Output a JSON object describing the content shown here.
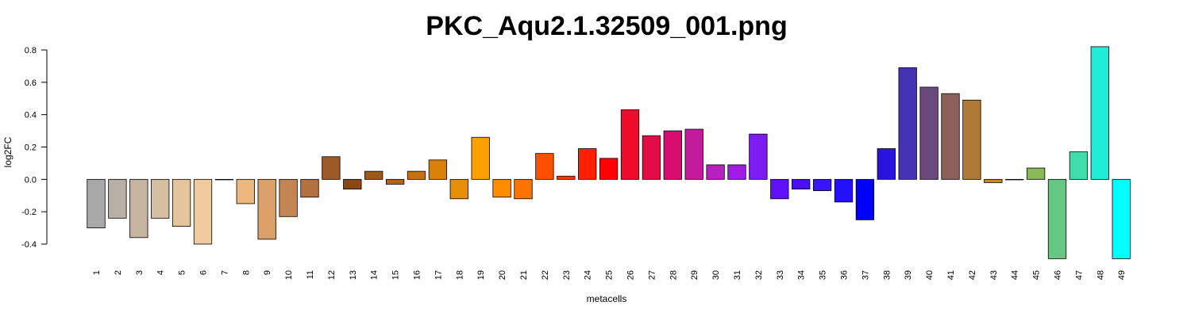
{
  "chart_data": {
    "type": "bar",
    "title": "PKC_Aqu2.1.32509_001.png",
    "xlabel": "metacells",
    "ylabel": "log2FC",
    "ylim": [
      -0.4,
      0.8
    ],
    "yticks": [
      "-0.4",
      "-0.2",
      "0.0",
      "0.2",
      "0.4",
      "0.6",
      "0.8"
    ],
    "categories": [
      "1",
      "2",
      "3",
      "4",
      "5",
      "6",
      "7",
      "8",
      "9",
      "10",
      "11",
      "12",
      "13",
      "14",
      "15",
      "16",
      "17",
      "18",
      "19",
      "20",
      "21",
      "22",
      "23",
      "24",
      "25",
      "26",
      "27",
      "28",
      "29",
      "30",
      "31",
      "32",
      "33",
      "34",
      "35",
      "36",
      "37",
      "38",
      "39",
      "40",
      "41",
      "42",
      "43",
      "44",
      "45",
      "46",
      "47",
      "48",
      "49"
    ],
    "values": [
      -0.3,
      -0.24,
      -0.36,
      -0.24,
      -0.29,
      -0.4,
      0.0,
      -0.15,
      -0.37,
      -0.23,
      -0.11,
      0.14,
      -0.06,
      0.05,
      -0.03,
      0.05,
      0.12,
      -0.12,
      0.26,
      -0.11,
      -0.12,
      0.16,
      0.02,
      0.19,
      0.13,
      0.43,
      0.27,
      0.3,
      0.31,
      0.09,
      0.09,
      0.28,
      -0.12,
      -0.06,
      -0.07,
      -0.14,
      -0.25,
      0.19,
      0.69,
      0.57,
      0.53,
      0.49,
      -0.02,
      0.0,
      0.07,
      -0.49,
      0.17,
      0.82,
      -0.49
    ],
    "colors": [
      "#a8a8a8",
      "#b8b0a4",
      "#c5b5a0",
      "#d6bea0",
      "#e4c49c",
      "#f0cc9c",
      "#f4d0a0",
      "#ecb87e",
      "#d9a06a",
      "#c48555",
      "#b47040",
      "#9c5a28",
      "#8a4812",
      "#a05a18",
      "#b86412",
      "#c87010",
      "#d88008",
      "#e88e06",
      "#fca000",
      "#ff8c00",
      "#ff7400",
      "#ff5000",
      "#ff3800",
      "#ff2000",
      "#ff0000",
      "#ee0c2a",
      "#e20c46",
      "#d60c70",
      "#c41a9e",
      "#b81ec0",
      "#a01ce4",
      "#7c1cf0",
      "#6010f8",
      "#4a10fa",
      "#3a14fa",
      "#2410fa",
      "#0000ff",
      "#2814dc",
      "#4632b4",
      "#6a4a7c",
      "#8c6058",
      "#ae7a36",
      "#c88e1a",
      "#b8a040",
      "#88b858",
      "#64c882",
      "#40dcaa",
      "#20ecd8",
      "#00ffff"
    ]
  }
}
